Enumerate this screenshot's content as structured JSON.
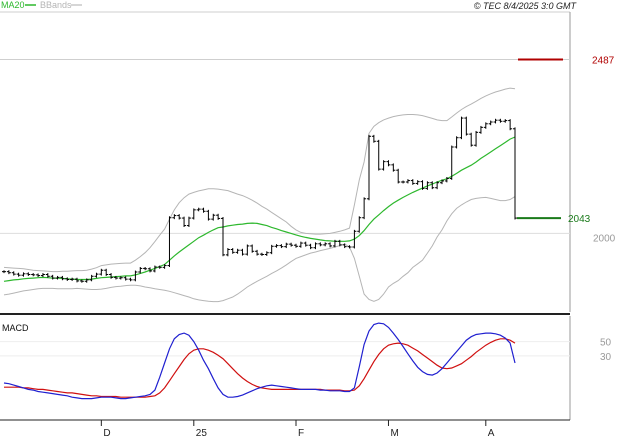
{
  "chart_data": [
    {
      "type": "line",
      "panel": "price",
      "legend": [
        {
          "label": "MA20",
          "color": "#2eb82e"
        },
        {
          "label": "BBands",
          "color": "#b5b5b5"
        }
      ],
      "header_text": "© TEC 8/4/2025 3:0 GMT",
      "y_ticks": [
        2000
      ],
      "y_tick_labels": [
        "2000"
      ],
      "ylim": [
        1780,
        2620
      ],
      "reference_line": 2487,
      "markers": [
        {
          "label": "2487",
          "value": 2487,
          "color": "#b00000"
        },
        {
          "label": "2043",
          "value": 2043,
          "color": "#1a7a1a"
        }
      ],
      "x_labels": [
        {
          "label": "D",
          "index": 20
        },
        {
          "label": "25",
          "index": 39
        },
        {
          "label": "F",
          "index": 60
        },
        {
          "label": "M",
          "index": 79
        },
        {
          "label": "A",
          "index": 99
        }
      ],
      "series": [
        {
          "name": "Price",
          "color": "#000000",
          "values": [
            1893,
            1890,
            1886,
            1883,
            1887,
            1885,
            1884,
            1882,
            1885,
            1880,
            1875,
            1877,
            1873,
            1871,
            1872,
            1867,
            1866,
            1870,
            1880,
            1886,
            1897,
            1885,
            1877,
            1875,
            1876,
            1872,
            1870,
            1892,
            1902,
            1901,
            1895,
            1906,
            1905,
            1910,
            2044,
            2050,
            2043,
            2022,
            2043,
            2066,
            2068,
            2062,
            2040,
            2051,
            2042,
            1940,
            1955,
            1947,
            1953,
            1942,
            1965,
            1950,
            1942,
            1941,
            1946,
            1964,
            1966,
            1963,
            1970,
            1967,
            1964,
            1973,
            1967,
            1960,
            1971,
            1968,
            1971,
            1965,
            1978,
            1968,
            1963,
            1962,
            2006,
            2044,
            2097,
            2272,
            2258,
            2180,
            2201,
            2192,
            2177,
            2144,
            2144,
            2148,
            2140,
            2145,
            2126,
            2142,
            2128,
            2142,
            2147,
            2154,
            2242,
            2268,
            2323,
            2278,
            2247,
            2283,
            2297,
            2307,
            2312,
            2317,
            2314,
            2316,
            2293,
            2043
          ]
        },
        {
          "name": "MA20",
          "color": "#2eb82e",
          "values": [
            1866,
            1868,
            1870,
            1871,
            1873,
            1874,
            1875,
            1876,
            1877,
            1876,
            1875,
            1875,
            1874,
            1873,
            1872,
            1871,
            1871,
            1871,
            1872,
            1874,
            1876,
            1877,
            1878,
            1879,
            1880,
            1881,
            1881,
            1884,
            1888,
            1892,
            1897,
            1902,
            1907,
            1913,
            1925,
            1937,
            1948,
            1958,
            1968,
            1978,
            1988,
            1995,
            2003,
            2010,
            2016,
            2018,
            2021,
            2023,
            2025,
            2026,
            2028,
            2029,
            2028,
            2025,
            2022,
            2017,
            2013,
            2008,
            2004,
            2000,
            1996,
            1992,
            1989,
            1986,
            1984,
            1982,
            1980,
            1979,
            1978,
            1978,
            1978,
            1979,
            1984,
            1994,
            2008,
            2025,
            2040,
            2052,
            2064,
            2075,
            2085,
            2093,
            2101,
            2108,
            2115,
            2121,
            2127,
            2133,
            2138,
            2144,
            2149,
            2153,
            2160,
            2168,
            2177,
            2184,
            2191,
            2200,
            2210,
            2219,
            2228,
            2237,
            2246,
            2255,
            2264,
            2270
          ]
        },
        {
          "name": "BBands upper",
          "color": "#b5b5b5",
          "values": [
            1905,
            1904,
            1903,
            1902,
            1901,
            1899,
            1897,
            1896,
            1895,
            1894,
            1893,
            1893,
            1894,
            1894,
            1895,
            1896,
            1896,
            1897,
            1900,
            1904,
            1910,
            1912,
            1914,
            1915,
            1916,
            1917,
            1917,
            1925,
            1935,
            1946,
            1960,
            1977,
            1995,
            2012,
            2040,
            2066,
            2086,
            2100,
            2110,
            2115,
            2119,
            2122,
            2125,
            2125,
            2124,
            2122,
            2120,
            2115,
            2110,
            2106,
            2100,
            2093,
            2085,
            2076,
            2068,
            2059,
            2050,
            2041,
            2032,
            2020,
            2010,
            2003,
            2000,
            1999,
            1998,
            1998,
            1999,
            2000,
            2003,
            2006,
            2010,
            2015,
            2080,
            2150,
            2200,
            2280,
            2300,
            2310,
            2318,
            2323,
            2327,
            2330,
            2332,
            2333,
            2333,
            2332,
            2330,
            2326,
            2322,
            2318,
            2316,
            2316,
            2326,
            2337,
            2347,
            2355,
            2362,
            2370,
            2378,
            2385,
            2391,
            2396,
            2400,
            2404,
            2407,
            2405
          ]
        },
        {
          "name": "BBands lower",
          "color": "#b5b5b5",
          "values": [
            1828,
            1830,
            1833,
            1836,
            1839,
            1841,
            1843,
            1845,
            1846,
            1846,
            1846,
            1845,
            1845,
            1845,
            1845,
            1846,
            1845,
            1844,
            1843,
            1843,
            1844,
            1846,
            1849,
            1851,
            1852,
            1854,
            1855,
            1855,
            1853,
            1850,
            1848,
            1845,
            1843,
            1841,
            1838,
            1834,
            1830,
            1826,
            1822,
            1817,
            1814,
            1812,
            1810,
            1809,
            1809,
            1812,
            1817,
            1822,
            1830,
            1840,
            1850,
            1858,
            1866,
            1873,
            1880,
            1888,
            1895,
            1903,
            1912,
            1921,
            1930,
            1935,
            1940,
            1945,
            1948,
            1952,
            1955,
            1958,
            1962,
            1966,
            1970,
            1962,
            1930,
            1880,
            1830,
            1815,
            1810,
            1815,
            1830,
            1850,
            1860,
            1868,
            1880,
            1890,
            1905,
            1915,
            1925,
            1945,
            1965,
            1990,
            2010,
            2035,
            2055,
            2070,
            2080,
            2088,
            2095,
            2098,
            2100,
            2101,
            2098,
            2095,
            2092,
            2092,
            2095,
            2103
          ]
        }
      ]
    },
    {
      "type": "line",
      "panel": "macd",
      "title": "MACD",
      "y_ticks": [
        30,
        50
      ],
      "y_tick_labels": [
        "30",
        "50"
      ],
      "ylim": [
        -60,
        86
      ],
      "x_labels": [
        {
          "label": "D",
          "index": 20
        },
        {
          "label": "25",
          "index": 39
        },
        {
          "label": "F",
          "index": 60
        },
        {
          "label": "M",
          "index": 79
        },
        {
          "label": "A",
          "index": 99
        }
      ],
      "series": [
        {
          "name": "MACD",
          "color": "#2020d0",
          "values": [
            -8,
            -9,
            -11,
            -13,
            -15,
            -17,
            -18,
            -20,
            -21,
            -22,
            -23,
            -24,
            -25,
            -26,
            -28,
            -29,
            -30,
            -30,
            -30,
            -29,
            -28,
            -28,
            -28,
            -29,
            -30,
            -30,
            -29,
            -28,
            -27,
            -26,
            -24,
            -18,
            0,
            20,
            40,
            54,
            60,
            62,
            59,
            50,
            38,
            24,
            12,
            -2,
            -15,
            -24,
            -28,
            -28,
            -27,
            -25,
            -22,
            -19,
            -16,
            -14,
            -12,
            -11,
            -12,
            -13,
            -14,
            -15,
            -16,
            -17,
            -17,
            -17,
            -17,
            -18,
            -18,
            -19,
            -19,
            -19,
            -20,
            -20,
            -15,
            15,
            46,
            65,
            74,
            76,
            75,
            70,
            62,
            53,
            43,
            33,
            23,
            14,
            8,
            4,
            3,
            6,
            12,
            20,
            28,
            36,
            44,
            52,
            57,
            60,
            61,
            62,
            62,
            61,
            59,
            55,
            48,
            20
          ]
        },
        {
          "name": "Signal",
          "color": "#d01010",
          "values": [
            -14,
            -14,
            -14,
            -14,
            -15,
            -15,
            -16,
            -17,
            -17,
            -18,
            -19,
            -20,
            -21,
            -22,
            -22,
            -23,
            -24,
            -25,
            -26,
            -26,
            -27,
            -27,
            -27,
            -27,
            -28,
            -28,
            -28,
            -28,
            -28,
            -28,
            -27,
            -26,
            -22,
            -15,
            -5,
            5,
            15,
            25,
            33,
            38,
            40,
            40,
            38,
            35,
            31,
            26,
            19,
            12,
            5,
            -1,
            -6,
            -10,
            -13,
            -15,
            -16,
            -17,
            -17,
            -17,
            -17,
            -17,
            -17,
            -17,
            -17,
            -17,
            -17,
            -17,
            -18,
            -18,
            -18,
            -18,
            -19,
            -19,
            -18,
            -12,
            -2,
            10,
            22,
            32,
            40,
            45,
            47,
            48,
            47,
            45,
            41,
            37,
            32,
            27,
            22,
            17,
            13,
            12,
            13,
            16,
            19,
            24,
            29,
            35,
            40,
            45,
            49,
            52,
            54,
            54,
            52,
            48
          ]
        }
      ]
    }
  ]
}
